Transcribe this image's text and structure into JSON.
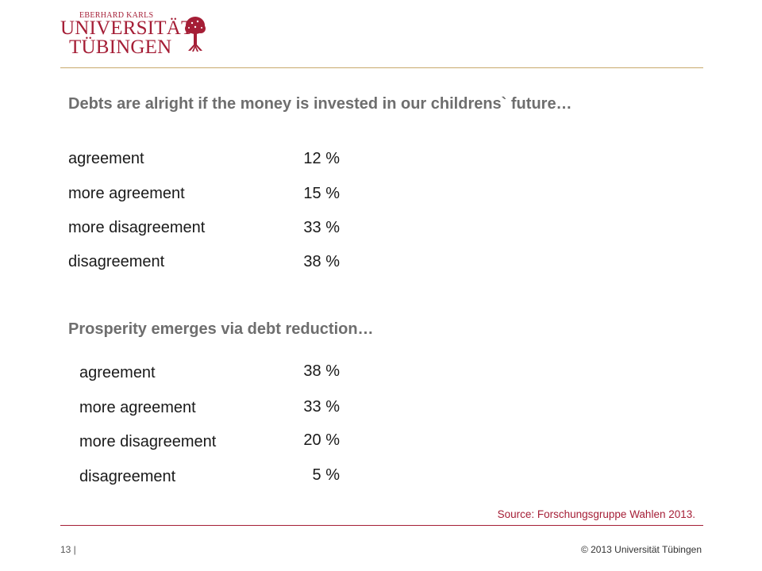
{
  "logo": {
    "line1": "EBERHARD KARLS",
    "line2": "UNIVERSITÄT",
    "line3": "TÜBINGEN",
    "brand_color": "#a51e36",
    "icon": "tree-seal-icon"
  },
  "section1": {
    "heading": "Debts are alright if the money is invested in our childrens` future…",
    "rows": [
      {
        "label": "agreement",
        "value": "12 %"
      },
      {
        "label": "more agreement",
        "value": "15 %"
      },
      {
        "label": "more disagreement",
        "value": "33 %"
      },
      {
        "label": "disagreement",
        "value": "38 %"
      }
    ]
  },
  "section2": {
    "heading": "Prosperity emerges via debt reduction…",
    "rows": [
      {
        "label": "agreement",
        "value": "38 %"
      },
      {
        "label": "more agreement",
        "value": "33 %"
      },
      {
        "label": "more disagreement",
        "value": "20 %"
      },
      {
        "label": "disagreement",
        "value": "5 %"
      }
    ]
  },
  "source": "Source: Forschungsgruppe Wahlen 2013.",
  "footer": {
    "page": "13 |",
    "copyright": "© 2013 Universität Tübingen"
  }
}
